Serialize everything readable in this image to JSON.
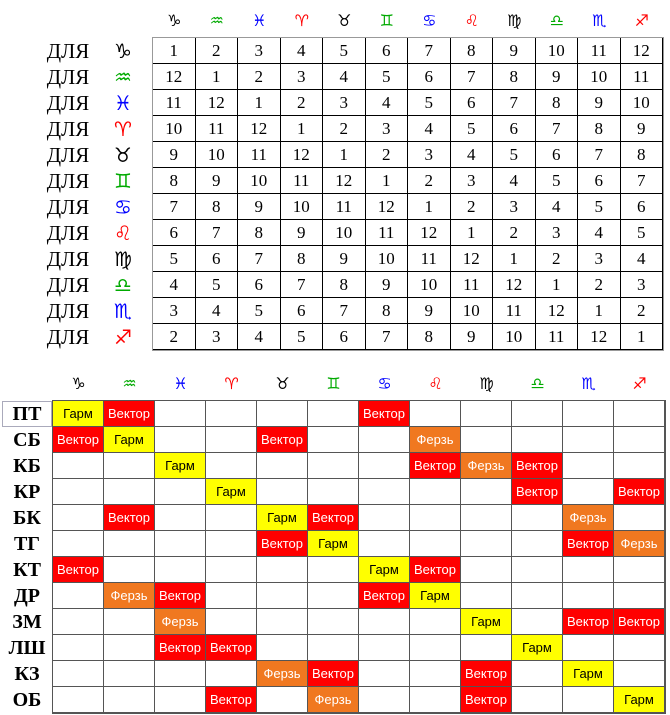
{
  "top_table": {
    "header": [
      {
        "symbol": "♑",
        "color": "#000000"
      },
      {
        "symbol": "♒",
        "color": "#00aa00"
      },
      {
        "symbol": "♓",
        "color": "#0000ff"
      },
      {
        "symbol": "♈",
        "color": "#ff0000"
      },
      {
        "symbol": "♉",
        "color": "#000000"
      },
      {
        "symbol": "♊",
        "color": "#00aa00"
      },
      {
        "symbol": "♋",
        "color": "#0000ff"
      },
      {
        "symbol": "♌",
        "color": "#ff0000"
      },
      {
        "symbol": "♍",
        "color": "#000000"
      },
      {
        "symbol": "♎",
        "color": "#00aa00"
      },
      {
        "symbol": "♏",
        "color": "#0000ff"
      },
      {
        "symbol": "♐",
        "color": "#ff0000"
      }
    ],
    "rows": [
      {
        "label": "ДЛЯ",
        "symbol": "♑",
        "color": "#000000",
        "cells": [
          1,
          2,
          3,
          4,
          5,
          6,
          7,
          8,
          9,
          10,
          11,
          12
        ]
      },
      {
        "label": "ДЛЯ",
        "symbol": "♒",
        "color": "#00aa00",
        "cells": [
          12,
          1,
          2,
          3,
          4,
          5,
          6,
          7,
          8,
          9,
          10,
          11
        ]
      },
      {
        "label": "ДЛЯ",
        "symbol": "♓",
        "color": "#0000ff",
        "cells": [
          11,
          12,
          1,
          2,
          3,
          4,
          5,
          6,
          7,
          8,
          9,
          10
        ]
      },
      {
        "label": "ДЛЯ",
        "symbol": "♈",
        "color": "#ff0000",
        "cells": [
          10,
          11,
          12,
          1,
          2,
          3,
          4,
          5,
          6,
          7,
          8,
          9
        ]
      },
      {
        "label": "ДЛЯ",
        "symbol": "♉",
        "color": "#000000",
        "cells": [
          9,
          10,
          11,
          12,
          1,
          2,
          3,
          4,
          5,
          6,
          7,
          8
        ]
      },
      {
        "label": "ДЛЯ",
        "symbol": "♊",
        "color": "#00aa00",
        "cells": [
          8,
          9,
          10,
          11,
          12,
          1,
          2,
          3,
          4,
          5,
          6,
          7
        ]
      },
      {
        "label": "ДЛЯ",
        "symbol": "♋",
        "color": "#0000ff",
        "cells": [
          7,
          8,
          9,
          10,
          11,
          12,
          1,
          2,
          3,
          4,
          5,
          6
        ]
      },
      {
        "label": "ДЛЯ",
        "symbol": "♌",
        "color": "#ff0000",
        "cells": [
          6,
          7,
          8,
          9,
          10,
          11,
          12,
          1,
          2,
          3,
          4,
          5
        ]
      },
      {
        "label": "ДЛЯ",
        "symbol": "♍",
        "color": "#000000",
        "cells": [
          5,
          6,
          7,
          8,
          9,
          10,
          11,
          12,
          1,
          2,
          3,
          4
        ]
      },
      {
        "label": "ДЛЯ",
        "symbol": "♎",
        "color": "#00aa00",
        "cells": [
          4,
          5,
          6,
          7,
          8,
          9,
          10,
          11,
          12,
          1,
          2,
          3
        ]
      },
      {
        "label": "ДЛЯ",
        "symbol": "♏",
        "color": "#0000ff",
        "cells": [
          3,
          4,
          5,
          6,
          7,
          8,
          9,
          10,
          11,
          12,
          1,
          2
        ]
      },
      {
        "label": "ДЛЯ",
        "symbol": "♐",
        "color": "#ff0000",
        "cells": [
          2,
          3,
          4,
          5,
          6,
          7,
          8,
          9,
          10,
          11,
          12,
          1
        ]
      }
    ]
  },
  "bottom_table": {
    "header": [
      {
        "symbol": "♑",
        "color": "#000000"
      },
      {
        "symbol": "♒",
        "color": "#00aa00"
      },
      {
        "symbol": "♓",
        "color": "#0000ff"
      },
      {
        "symbol": "♈",
        "color": "#ff0000"
      },
      {
        "symbol": "♉",
        "color": "#000000"
      },
      {
        "symbol": "♊",
        "color": "#00aa00"
      },
      {
        "symbol": "♋",
        "color": "#0000ff"
      },
      {
        "symbol": "♌",
        "color": "#ff0000"
      },
      {
        "symbol": "♍",
        "color": "#000000"
      },
      {
        "symbol": "♎",
        "color": "#00aa00"
      },
      {
        "symbol": "♏",
        "color": "#0000ff"
      },
      {
        "symbol": "♐",
        "color": "#ff0000"
      }
    ],
    "rows": [
      {
        "label": "ПТ",
        "cells": [
          {
            "text": "Гарм",
            "color": "#ffff00",
            "text_color": "#000000"
          },
          {
            "text": "Вектор",
            "color": "#ff0000",
            "text_color": "#ffffff"
          },
          null,
          null,
          null,
          null,
          {
            "text": "Вектор",
            "color": "#ff0000",
            "text_color": "#ffffff"
          },
          null,
          null,
          null,
          null,
          null
        ]
      },
      {
        "label": "СБ",
        "cells": [
          {
            "text": "Вектор",
            "color": "#ff0000",
            "text_color": "#ffffff"
          },
          {
            "text": "Гарм",
            "color": "#ffff00",
            "text_color": "#000000"
          },
          null,
          null,
          {
            "text": "Вектор",
            "color": "#ff0000",
            "text_color": "#ffffff"
          },
          null,
          null,
          {
            "text": "Ферзь",
            "color": "#f07820",
            "text_color": "#ffffff"
          },
          null,
          null,
          null,
          null
        ]
      },
      {
        "label": "КБ",
        "cells": [
          null,
          null,
          {
            "text": "Гарм",
            "color": "#ffff00",
            "text_color": "#000000"
          },
          null,
          null,
          null,
          null,
          {
            "text": "Вектор",
            "color": "#ff0000",
            "text_color": "#ffffff"
          },
          {
            "text": "Ферзь",
            "color": "#f07820",
            "text_color": "#ffffff"
          },
          {
            "text": "Вектор",
            "color": "#ff0000",
            "text_color": "#ffffff"
          },
          null,
          null
        ]
      },
      {
        "label": "КР",
        "cells": [
          null,
          null,
          null,
          {
            "text": "Гарм",
            "color": "#ffff00",
            "text_color": "#000000"
          },
          null,
          null,
          null,
          null,
          null,
          {
            "text": "Вектор",
            "color": "#ff0000",
            "text_color": "#ffffff"
          },
          null,
          {
            "text": "Вектор",
            "color": "#ff0000",
            "text_color": "#ffffff"
          }
        ]
      },
      {
        "label": "БК",
        "cells": [
          null,
          {
            "text": "Вектор",
            "color": "#ff0000",
            "text_color": "#ffffff"
          },
          null,
          null,
          {
            "text": "Гарм",
            "color": "#ffff00",
            "text_color": "#000000"
          },
          {
            "text": "Вектор",
            "color": "#ff0000",
            "text_color": "#ffffff"
          },
          null,
          null,
          null,
          null,
          {
            "text": "Ферзь",
            "color": "#f07820",
            "text_color": "#ffffff"
          },
          null
        ]
      },
      {
        "label": "ТГ",
        "cells": [
          null,
          null,
          null,
          null,
          {
            "text": "Вектор",
            "color": "#ff0000",
            "text_color": "#ffffff"
          },
          {
            "text": "Гарм",
            "color": "#ffff00",
            "text_color": "#000000"
          },
          null,
          null,
          null,
          null,
          {
            "text": "Вектор",
            "color": "#ff0000",
            "text_color": "#ffffff"
          },
          {
            "text": "Ферзь",
            "color": "#f07820",
            "text_color": "#ffffff"
          }
        ]
      },
      {
        "label": "КТ",
        "cells": [
          {
            "text": "Вектор",
            "color": "#ff0000",
            "text_color": "#ffffff"
          },
          null,
          null,
          null,
          null,
          null,
          {
            "text": "Гарм",
            "color": "#ffff00",
            "text_color": "#000000"
          },
          {
            "text": "Вектор",
            "color": "#ff0000",
            "text_color": "#ffffff"
          },
          null,
          null,
          null,
          null
        ]
      },
      {
        "label": "ДР",
        "cells": [
          null,
          {
            "text": "Ферзь",
            "color": "#f07820",
            "text_color": "#ffffff"
          },
          {
            "text": "Вектор",
            "color": "#ff0000",
            "text_color": "#ffffff"
          },
          null,
          null,
          null,
          {
            "text": "Вектор",
            "color": "#ff0000",
            "text_color": "#ffffff"
          },
          {
            "text": "Гарм",
            "color": "#ffff00",
            "text_color": "#000000"
          },
          null,
          null,
          null,
          null
        ]
      },
      {
        "label": "ЗМ",
        "cells": [
          null,
          null,
          {
            "text": "Ферзь",
            "color": "#f07820",
            "text_color": "#ffffff"
          },
          null,
          null,
          null,
          null,
          null,
          {
            "text": "Гарм",
            "color": "#ffff00",
            "text_color": "#000000"
          },
          null,
          {
            "text": "Вектор",
            "color": "#ff0000",
            "text_color": "#ffffff"
          },
          {
            "text": "Вектор",
            "color": "#ff0000",
            "text_color": "#ffffff"
          }
        ]
      },
      {
        "label": "ЛШ",
        "cells": [
          null,
          null,
          {
            "text": "Вектор",
            "color": "#ff0000",
            "text_color": "#ffffff"
          },
          {
            "text": "Вектор",
            "color": "#ff0000",
            "text_color": "#ffffff"
          },
          null,
          null,
          null,
          null,
          null,
          {
            "text": "Гарм",
            "color": "#ffff00",
            "text_color": "#000000"
          },
          null,
          null
        ]
      },
      {
        "label": "КЗ",
        "cells": [
          null,
          null,
          null,
          null,
          {
            "text": "Ферзь",
            "color": "#f07820",
            "text_color": "#ffffff"
          },
          {
            "text": "Вектор",
            "color": "#ff0000",
            "text_color": "#ffffff"
          },
          null,
          null,
          {
            "text": "Вектор",
            "color": "#ff0000",
            "text_color": "#ffffff"
          },
          null,
          {
            "text": "Гарм",
            "color": "#ffff00",
            "text_color": "#000000"
          },
          null
        ]
      },
      {
        "label": "ОБ",
        "cells": [
          null,
          null,
          null,
          {
            "text": "Вектор",
            "color": "#ff0000",
            "text_color": "#ffffff"
          },
          null,
          {
            "text": "Ферзь",
            "color": "#f07820",
            "text_color": "#ffffff"
          },
          null,
          null,
          {
            "text": "Вектор",
            "color": "#ff0000",
            "text_color": "#ffffff"
          },
          null,
          null,
          {
            "text": "Гарм",
            "color": "#ffff00",
            "text_color": "#000000"
          }
        ]
      }
    ]
  }
}
